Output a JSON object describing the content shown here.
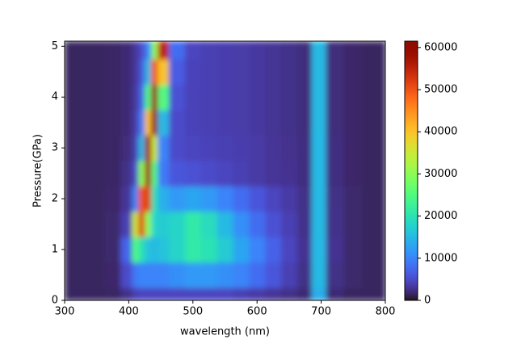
{
  "chart_data": {
    "type": "heatmap",
    "colormap": "turbo",
    "xlabel": "wavelength (nm)",
    "ylabel": "Pressure(GPa)",
    "x": [
      300,
      325,
      350,
      375,
      400,
      410,
      420,
      430,
      440,
      450,
      475,
      500,
      525,
      550,
      575,
      600,
      625,
      650,
      675,
      695,
      720,
      750,
      775,
      800
    ],
    "y": [
      0,
      0.5,
      1,
      1.5,
      2,
      2.5,
      3,
      3.5,
      4,
      4.5,
      5
    ],
    "z": [
      [
        1500,
        1500,
        1500,
        1600,
        2500,
        4000,
        4500,
        4500,
        4500,
        4500,
        4500,
        4500,
        4500,
        4500,
        4000,
        3500,
        3000,
        2500,
        2000,
        14000,
        2000,
        1500,
        1500,
        1500
      ],
      [
        1500,
        1500,
        1500,
        1700,
        5000,
        9000,
        10000,
        10000,
        10000,
        10000,
        11000,
        12000,
        12000,
        11000,
        10000,
        8000,
        6000,
        4000,
        2500,
        15000,
        2500,
        1800,
        1500,
        1500
      ],
      [
        1500,
        1500,
        1500,
        1800,
        7000,
        25000,
        20000,
        16000,
        15000,
        16000,
        18000,
        21000,
        20000,
        17000,
        13000,
        10000,
        7000,
        4500,
        2800,
        15000,
        2800,
        1800,
        1500,
        1500
      ],
      [
        1500,
        1500,
        1500,
        1800,
        4000,
        35000,
        52000,
        30000,
        18000,
        17000,
        18000,
        21000,
        19000,
        15000,
        11000,
        8000,
        5500,
        4000,
        2600,
        15000,
        2600,
        1800,
        1500,
        1500
      ],
      [
        1500,
        1500,
        1500,
        1700,
        3000,
        10000,
        50000,
        52000,
        20000,
        14000,
        12000,
        13000,
        12000,
        10000,
        8000,
        6000,
        4500,
        3500,
        2500,
        15000,
        2500,
        1800,
        1500,
        1500
      ],
      [
        1500,
        1500,
        1500,
        1600,
        2500,
        5000,
        30000,
        58000,
        25000,
        9000,
        6000,
        5500,
        5000,
        4500,
        4000,
        3500,
        3000,
        2800,
        2300,
        15000,
        2300,
        1700,
        1500,
        1500
      ],
      [
        1500,
        1500,
        1500,
        1600,
        2200,
        4000,
        15000,
        58000,
        35000,
        10000,
        5000,
        4500,
        4200,
        4000,
        3800,
        3500,
        3000,
        2700,
        2300,
        15000,
        2300,
        1700,
        1500,
        1500
      ],
      [
        1500,
        1500,
        1500,
        1600,
        2000,
        3500,
        9000,
        40000,
        60000,
        15000,
        5000,
        4200,
        4000,
        3800,
        3600,
        3300,
        2900,
        2600,
        2200,
        15000,
        2200,
        1700,
        1500,
        1500
      ],
      [
        1500,
        1500,
        1500,
        1600,
        2000,
        3200,
        7000,
        25000,
        60000,
        25000,
        5500,
        4200,
        4000,
        3800,
        3600,
        3300,
        2900,
        2600,
        2200,
        15000,
        2200,
        1700,
        1500,
        1500
      ],
      [
        1500,
        1500,
        1500,
        1600,
        2000,
        3000,
        6000,
        15000,
        50000,
        40000,
        6500,
        4300,
        4000,
        3800,
        3600,
        3300,
        2900,
        2600,
        2200,
        15000,
        2200,
        1700,
        1500,
        1500
      ],
      [
        1500,
        1500,
        1500,
        1600,
        2000,
        3000,
        5000,
        10000,
        30000,
        55000,
        8000,
        4500,
        4000,
        3800,
        3600,
        3300,
        2900,
        2600,
        2200,
        15000,
        2200,
        1700,
        1500,
        1500
      ]
    ],
    "xlim": [
      300,
      800
    ],
    "ylim": [
      0,
      5.1
    ],
    "zlim": [
      0,
      61500
    ],
    "xticks": [
      300,
      400,
      500,
      600,
      700,
      800
    ],
    "yticks": [
      0,
      1,
      2,
      3,
      4,
      5
    ],
    "zticks": [
      0,
      10000,
      20000,
      30000,
      40000,
      50000,
      60000
    ]
  }
}
